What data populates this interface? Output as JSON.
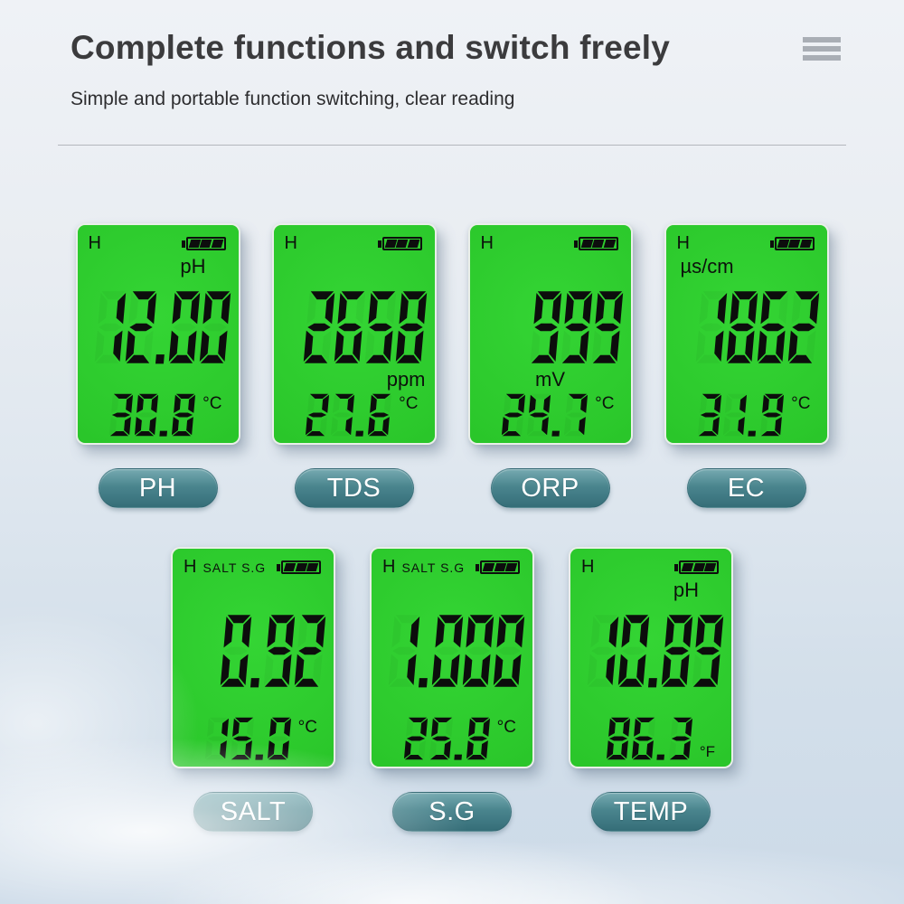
{
  "header": {
    "title": "Complete functions and switch freely",
    "subtitle": "Simple and portable function switching, clear reading"
  },
  "icons": {
    "menu": "hamburger-three-lines",
    "battery": "battery-full-3-bars"
  },
  "colors": {
    "lcd_green": "#2cc92c",
    "digit_black": "#0c0d0c",
    "pill_teal": "#47828b",
    "pill_text": "#ffffff",
    "title_text": "#3b3b3d",
    "background_top": "#eff2f6",
    "background_bottom": "#ccdae8",
    "menu_icon": "#a9aeb5"
  },
  "meters": [
    {
      "row": 0,
      "label": "PH",
      "hold": "H",
      "modes": "",
      "unit_top": "pH",
      "unit_top_side": "right",
      "value": "12.00",
      "unit_bottom": "",
      "unit_bottom_align": "",
      "temp": "30.8",
      "temp_unit": "°C",
      "temp_unit_pos": "top"
    },
    {
      "row": 0,
      "label": "TDS",
      "hold": "H",
      "modes": "",
      "unit_top": "",
      "unit_top_side": "",
      "value": "2658",
      "unit_bottom": "ppm",
      "unit_bottom_align": "right",
      "temp": "27.6",
      "temp_unit": "°C",
      "temp_unit_pos": "top"
    },
    {
      "row": 0,
      "label": "ORP",
      "hold": "H",
      "modes": "",
      "unit_top": "",
      "unit_top_side": "",
      "value": "999",
      "unit_bottom": "mV",
      "unit_bottom_align": "center",
      "temp": "24.7",
      "temp_unit": "°C",
      "temp_unit_pos": "top"
    },
    {
      "row": 0,
      "label": "EC",
      "hold": "H",
      "modes": "",
      "unit_top": "µs/cm",
      "unit_top_side": "left",
      "value": "1862",
      "unit_bottom": "",
      "unit_bottom_align": "",
      "temp": "31.9",
      "temp_unit": "°C",
      "temp_unit_pos": "top"
    },
    {
      "row": 1,
      "label": "SALT",
      "hold": "H",
      "modes": "SALT S.G",
      "unit_top": "",
      "unit_top_side": "",
      "value": "0.92",
      "unit_bottom": "",
      "unit_bottom_align": "",
      "temp": "15.0",
      "temp_unit": "°C",
      "temp_unit_pos": "top"
    },
    {
      "row": 1,
      "label": "S.G",
      "hold": "H",
      "modes": "SALT S.G",
      "unit_top": "",
      "unit_top_side": "",
      "value": "1.000",
      "unit_bottom": "",
      "unit_bottom_align": "",
      "temp": "25.8",
      "temp_unit": "°C",
      "temp_unit_pos": "top"
    },
    {
      "row": 1,
      "label": "TEMP",
      "hold": "H",
      "modes": "",
      "unit_top": "pH",
      "unit_top_side": "right",
      "value": "10.89",
      "unit_bottom": "",
      "unit_bottom_align": "",
      "temp": "86.3",
      "temp_unit": "°F",
      "temp_unit_pos": "bottom"
    }
  ]
}
